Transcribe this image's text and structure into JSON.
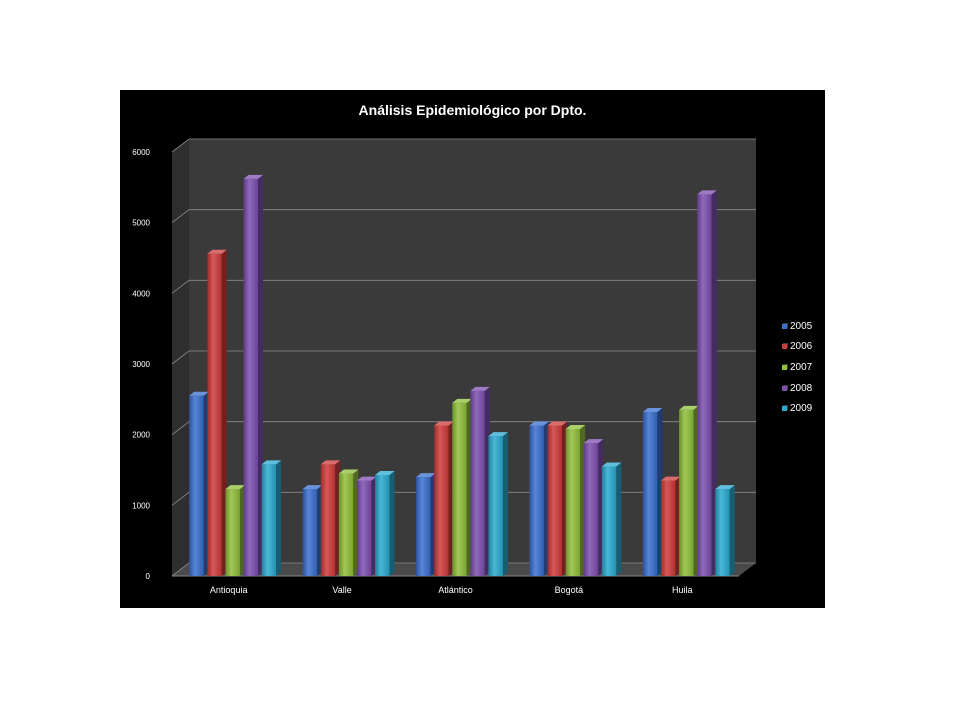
{
  "chart_data": {
    "type": "bar",
    "title": "Análisis Epidemiológico por Dpto.",
    "categories": [
      "Antioquia",
      "Valle",
      "Atlántico",
      "Bogotá",
      "Huila"
    ],
    "series": [
      {
        "name": "2005",
        "color": "#3a6fd0",
        "values": [
          2550,
          1230,
          1400,
          2130,
          2320
        ]
      },
      {
        "name": "2006",
        "color": "#d03a3a",
        "values": [
          4560,
          1580,
          2130,
          2130,
          1350
        ]
      },
      {
        "name": "2007",
        "color": "#8fc03a",
        "values": [
          1230,
          1450,
          2450,
          2080,
          2350
        ]
      },
      {
        "name": "2008",
        "color": "#7d4fb0",
        "values": [
          5620,
          1350,
          2620,
          1880,
          5400
        ]
      },
      {
        "name": "2009",
        "color": "#2aaad0",
        "values": [
          1580,
          1430,
          1980,
          1550,
          1230
        ]
      }
    ],
    "ylim": [
      0,
      6000
    ],
    "yticks": [
      0,
      1000,
      2000,
      3000,
      4000,
      5000,
      6000
    ],
    "legend_position": "right",
    "grid": true
  }
}
